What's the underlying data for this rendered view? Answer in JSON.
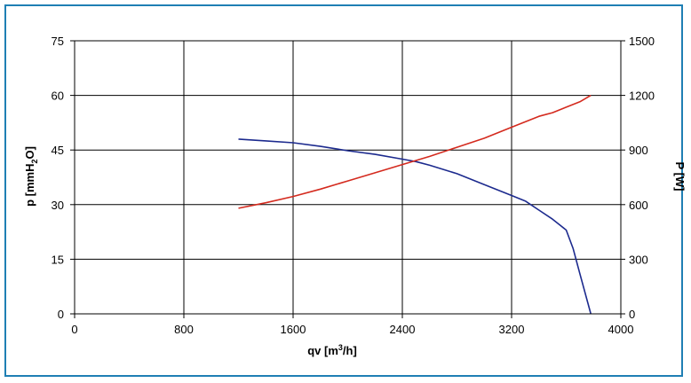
{
  "chart_data": {
    "type": "line",
    "title": "",
    "xlabel": "qv [m",
    "xlabel_sup": "3",
    "xlabel_tail": "/h]",
    "ylabel": "p [mmH",
    "ylabel_sub": "2",
    "ylabel_tail": "O]",
    "y2label": "P [W]",
    "xlim": [
      0,
      4000
    ],
    "ylim": [
      0,
      75
    ],
    "y2lim": [
      0,
      1500
    ],
    "x_ticks": [
      "0",
      "800",
      "1600",
      "2400",
      "3200",
      "4000"
    ],
    "y_ticks": [
      "0",
      "15",
      "30",
      "45",
      "60",
      "75"
    ],
    "y2_ticks": [
      "0",
      "300",
      "600",
      "900",
      "1200",
      "1500"
    ],
    "grid": true,
    "legend": "none",
    "series": [
      {
        "axis": "left",
        "color": "#1c2a8e",
        "x": [
          1200,
          1400,
          1600,
          1800,
          2000,
          2200,
          2400,
          2500,
          2600,
          2800,
          3000,
          3200,
          3300,
          3400,
          3500,
          3600,
          3650,
          3700,
          3780
        ],
        "y": [
          48,
          47.5,
          47,
          46,
          44.8,
          43.8,
          42.5,
          41.8,
          40.8,
          38.5,
          35.5,
          32.5,
          31,
          28.5,
          26,
          23,
          18,
          11,
          0
        ]
      },
      {
        "axis": "right",
        "color": "#d42a1e",
        "x": [
          1200,
          1400,
          1600,
          1800,
          2000,
          2200,
          2400,
          2600,
          2800,
          3000,
          3200,
          3300,
          3400,
          3500,
          3600,
          3700,
          3780
        ],
        "y": [
          580,
          610,
          645,
          685,
          730,
          775,
          820,
          865,
          915,
          965,
          1025,
          1055,
          1085,
          1105,
          1135,
          1165,
          1200
        ]
      }
    ]
  }
}
